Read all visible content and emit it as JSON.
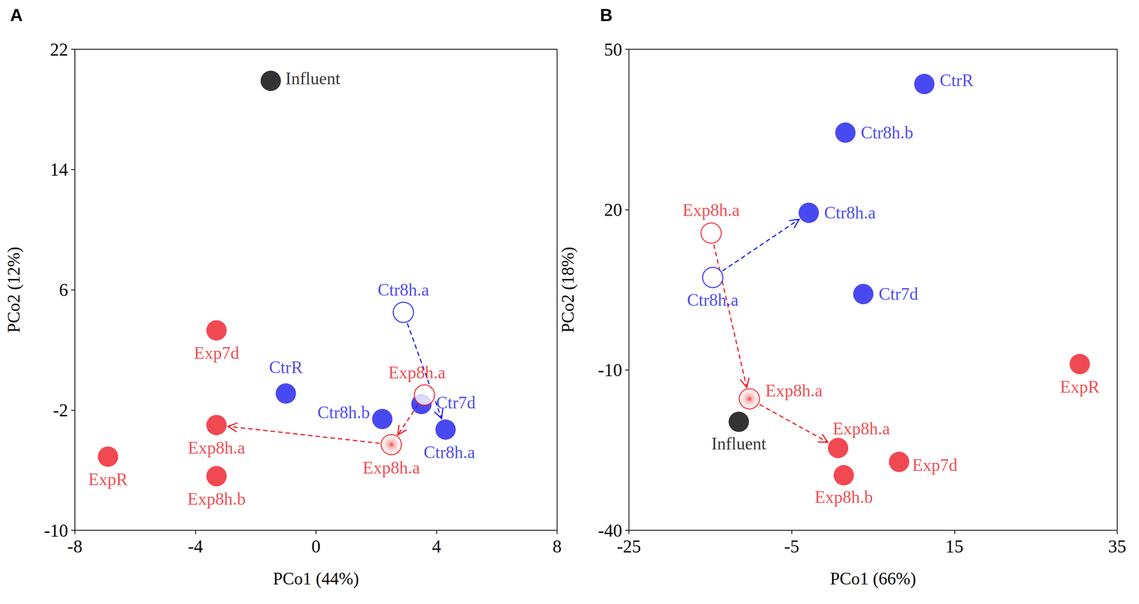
{
  "chart_data": [
    {
      "type": "scatter",
      "title": "A",
      "xlabel": "PCo1 (44%)",
      "ylabel": "PCo2 (12%)",
      "xlim": [
        -8,
        8
      ],
      "xticks": [
        -8,
        -4,
        0,
        4,
        8
      ],
      "ylim": [
        -10,
        22
      ],
      "yticks": [
        -10,
        -2,
        6,
        14,
        22
      ],
      "points": [
        {
          "label": "Influent",
          "x": -1.5,
          "y": 19.9,
          "color": "#000000",
          "marker": "filled"
        },
        {
          "label": "Exp7d",
          "x": -3.3,
          "y": 3.3,
          "color": "#ee1c25",
          "marker": "filled"
        },
        {
          "label": "CtrR",
          "x": -1.0,
          "y": -0.9,
          "color": "#1c1cee",
          "marker": "filled"
        },
        {
          "label": "Exp8h.a",
          "x": -3.3,
          "y": -3.0,
          "color": "#ee1c25",
          "marker": "filled"
        },
        {
          "label": "ExpR",
          "x": -6.9,
          "y": -5.1,
          "color": "#ee1c25",
          "marker": "filled"
        },
        {
          "label": "Exp8h.b",
          "x": -3.3,
          "y": -6.4,
          "color": "#ee1c25",
          "marker": "filled"
        },
        {
          "label": "Ctr8h.b",
          "x": 2.2,
          "y": -2.6,
          "color": "#1c1cee",
          "marker": "filled"
        },
        {
          "label": "Ctr7d",
          "x": 3.5,
          "y": -1.6,
          "color": "#1c1cee",
          "marker": "filled"
        },
        {
          "label": "Ctr8h.a",
          "x": 4.3,
          "y": -3.3,
          "color": "#1c1cee",
          "marker": "filled"
        },
        {
          "label": "Ctr8h.a",
          "x": 2.9,
          "y": 4.5,
          "color": "#1c1cee",
          "marker": "open"
        },
        {
          "label": "Exp8h.a",
          "x": 3.6,
          "y": -1.0,
          "color": "#ee1c25",
          "marker": "open"
        },
        {
          "label": "Exp8h.a",
          "x": 2.5,
          "y": -4.3,
          "color": "#ee1c25",
          "marker": "gradient"
        }
      ],
      "arrows": [
        {
          "from": [
            2.9,
            4.5
          ],
          "to": [
            4.3,
            -3.3
          ],
          "color": "#1c1cee",
          "line_style": "dashed"
        },
        {
          "from": [
            3.6,
            -1.0
          ],
          "to": [
            2.5,
            -4.3
          ],
          "color": "#ee1c25",
          "line_style": "dashed"
        },
        {
          "from": [
            2.5,
            -4.3
          ],
          "to": [
            -3.3,
            -3.0
          ],
          "color": "#ee1c25",
          "line_style": "dashed"
        }
      ]
    },
    {
      "type": "scatter",
      "title": "B",
      "xlabel": "PCo1 (66%)",
      "ylabel": "PCo2 (18%)",
      "xlim": [
        -25,
        35
      ],
      "xticks": [
        -25,
        -5,
        15,
        35
      ],
      "ylim": [
        -40,
        50
      ],
      "yticks": [
        -40,
        -10,
        20,
        50
      ],
      "points": [
        {
          "label": "CtrR",
          "x": 11.3,
          "y": 43.5,
          "color": "#1c1cee",
          "marker": "filled"
        },
        {
          "label": "Ctr8h.b",
          "x": 1.6,
          "y": 34.4,
          "color": "#1c1cee",
          "marker": "filled"
        },
        {
          "label": "Ctr8h.a",
          "x": -2.9,
          "y": 19.4,
          "color": "#1c1cee",
          "marker": "filled"
        },
        {
          "label": "Ctr7d",
          "x": 3.8,
          "y": 4.2,
          "color": "#1c1cee",
          "marker": "filled"
        },
        {
          "label": "ExpR",
          "x": 30.4,
          "y": -8.9,
          "color": "#ee1c25",
          "marker": "filled"
        },
        {
          "label": "Exp8h.a",
          "x": -14.9,
          "y": 15.6,
          "color": "#ee1c25",
          "marker": "open"
        },
        {
          "label": "Ctr8h.a",
          "x": -14.7,
          "y": 7.3,
          "color": "#1c1cee",
          "marker": "open"
        },
        {
          "label": "Exp8h.a",
          "x": -10.2,
          "y": -15.4,
          "color": "#ee1c25",
          "marker": "gradient"
        },
        {
          "label": "Influent",
          "x": -11.5,
          "y": -19.7,
          "color": "#000000",
          "marker": "filled"
        },
        {
          "label": "Exp8h.a",
          "x": 0.7,
          "y": -24.6,
          "color": "#ee1c25",
          "marker": "filled"
        },
        {
          "label": "Exp8h.b",
          "x": 1.4,
          "y": -29.7,
          "color": "#ee1c25",
          "marker": "filled"
        },
        {
          "label": "Exp7d",
          "x": 8.2,
          "y": -27.2,
          "color": "#ee1c25",
          "marker": "filled"
        }
      ],
      "arrows": [
        {
          "from": [
            -14.7,
            7.3
          ],
          "to": [
            -2.9,
            19.4
          ],
          "color": "#1c1cee",
          "line_style": "dashed"
        },
        {
          "from": [
            -14.9,
            15.6
          ],
          "to": [
            -10.2,
            -15.4
          ],
          "color": "#ee1c25",
          "line_style": "dashed"
        },
        {
          "from": [
            -10.2,
            -15.4
          ],
          "to": [
            0.7,
            -24.6
          ],
          "color": "#ee1c25",
          "line_style": "dashed"
        }
      ]
    }
  ]
}
